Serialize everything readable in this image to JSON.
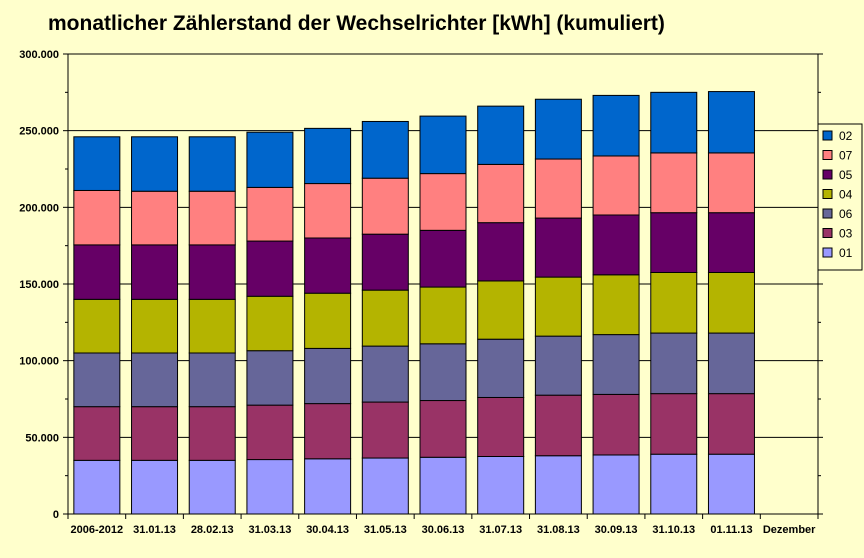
{
  "chart_data": {
    "type": "bar",
    "stacked": true,
    "title": "monatlicher Zählerstand der Wechselrichter [kWh] (kumuliert)",
    "xlabel": "",
    "ylabel": "",
    "ylim": [
      0,
      300000
    ],
    "yticks": [
      "0",
      "50.000",
      "100.000",
      "150.000",
      "200.000",
      "250.000",
      "300.000"
    ],
    "ytick_values": [
      0,
      50000,
      100000,
      150000,
      200000,
      250000,
      300000
    ],
    "grid": true,
    "legend_position": "right",
    "categories": [
      "2006-2012",
      "31.01.13",
      "28.02.13",
      "31.03.13",
      "30.04.13",
      "31.05.13",
      "30.06.13",
      "31.07.13",
      "31.08.13",
      "30.09.13",
      "31.10.13",
      "01.11.13",
      "Dezember"
    ],
    "series": [
      {
        "name": "01",
        "color": "#9999ff",
        "values": [
          35000,
          35000,
          35000,
          35500,
          36000,
          36500,
          37000,
          37500,
          38000,
          38500,
          39000,
          39000,
          null
        ]
      },
      {
        "name": "03",
        "color": "#993366",
        "values": [
          35000,
          35000,
          35000,
          35500,
          36000,
          36500,
          37000,
          38500,
          39500,
          39500,
          39500,
          39500,
          null
        ]
      },
      {
        "name": "06",
        "color": "#666699",
        "values": [
          35000,
          35000,
          35000,
          35500,
          36000,
          36500,
          37000,
          38000,
          38500,
          39000,
          39500,
          39500,
          null
        ]
      },
      {
        "name": "04",
        "color": "#b4b400",
        "values": [
          35000,
          35000,
          35000,
          35500,
          36000,
          36500,
          37000,
          38000,
          38500,
          39000,
          39500,
          39500,
          null
        ]
      },
      {
        "name": "05",
        "color": "#660066",
        "values": [
          35500,
          35500,
          35500,
          36000,
          36000,
          36500,
          37000,
          38000,
          38500,
          39000,
          39000,
          39000,
          null
        ]
      },
      {
        "name": "07",
        "color": "#ff8080",
        "values": [
          35500,
          35000,
          35000,
          35000,
          35500,
          36500,
          37000,
          38000,
          38500,
          38500,
          39000,
          39000,
          null
        ]
      },
      {
        "name": "02",
        "color": "#0066cc",
        "values": [
          35000,
          35500,
          35500,
          36000,
          36000,
          37000,
          37500,
          38000,
          39000,
          39500,
          39500,
          40000,
          null
        ]
      }
    ]
  }
}
